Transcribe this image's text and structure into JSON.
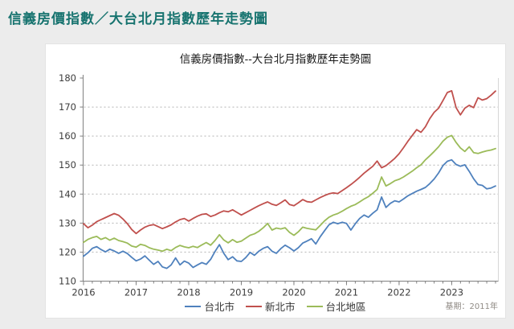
{
  "page": {
    "title": "信義房價指數／大台北月指數歷年走勢圖"
  },
  "panel": {
    "note": "基期：2011年"
  },
  "chart_data": {
    "type": "line",
    "title": "信義房價指數--大台北月指數歷年走勢圖",
    "x_unit": "month",
    "x_start": "2016-01",
    "x_end": "2023-11",
    "x_tick_labels": [
      "2016",
      "2017",
      "2018",
      "2019",
      "2020",
      "2021",
      "2022",
      "2023"
    ],
    "months_per_label": 12,
    "ylim": [
      110,
      180
    ],
    "y_ticks": [
      110,
      120,
      130,
      140,
      150,
      160,
      170,
      180
    ],
    "y_gridlines": [
      120,
      130,
      140,
      150,
      160,
      170
    ],
    "grid": "horizontal dashed",
    "legend_position": "bottom-center",
    "base_period_note": "基期：2011年",
    "axis_color": "#808080",
    "grid_color": "#b4b4b4",
    "series": [
      {
        "name": "台北市",
        "color": "#4F81BD",
        "values": [
          118.6,
          119.8,
          121.3,
          121.9,
          120.9,
          120.1,
          121.0,
          120.4,
          119.6,
          120.3,
          119.5,
          118.2,
          117.0,
          117.6,
          118.7,
          117.2,
          115.8,
          116.8,
          114.9,
          114.4,
          115.6,
          118.0,
          115.6,
          116.9,
          116.2,
          114.7,
          115.6,
          116.4,
          115.8,
          117.5,
          120.2,
          122.6,
          119.6,
          117.4,
          118.4,
          117.0,
          116.8,
          118.1,
          119.9,
          118.9,
          120.3,
          121.3,
          121.9,
          120.3,
          119.6,
          121.2,
          122.4,
          121.5,
          120.4,
          121.5,
          123.1,
          123.8,
          124.6,
          122.8,
          125.3,
          127.4,
          129.4,
          130.3,
          129.8,
          130.3,
          129.9,
          127.6,
          129.8,
          131.6,
          132.8,
          132.0,
          133.4,
          134.6,
          139.0,
          135.4,
          136.8,
          137.7,
          137.3,
          138.3,
          139.4,
          140.2,
          141.0,
          141.6,
          142.3,
          143.6,
          145.2,
          147.3,
          149.8,
          151.3,
          151.8,
          150.2,
          149.6,
          150.1,
          147.8,
          145.3,
          143.3,
          143.0,
          141.8,
          142.1,
          142.8
        ]
      },
      {
        "name": "新北市",
        "color": "#C0504D",
        "values": [
          129.8,
          128.4,
          129.3,
          130.5,
          131.2,
          131.9,
          132.6,
          133.3,
          132.7,
          131.4,
          129.8,
          127.8,
          126.4,
          127.6,
          128.6,
          129.2,
          129.5,
          128.8,
          128.1,
          128.7,
          129.4,
          130.4,
          131.2,
          131.6,
          130.7,
          131.6,
          132.4,
          133.0,
          133.2,
          132.3,
          132.8,
          133.6,
          134.2,
          133.9,
          134.6,
          133.7,
          132.8,
          133.6,
          134.4,
          135.2,
          136.0,
          136.7,
          137.3,
          136.5,
          136.1,
          137.0,
          138.0,
          136.4,
          136.0,
          137.0,
          138.1,
          137.4,
          137.2,
          138.0,
          138.8,
          139.5,
          140.1,
          140.4,
          140.2,
          141.2,
          142.2,
          143.3,
          144.5,
          145.8,
          147.2,
          148.4,
          149.6,
          151.4,
          149.1,
          149.8,
          151.0,
          152.3,
          153.9,
          156.0,
          158.2,
          160.2,
          162.2,
          161.3,
          163.2,
          166.0,
          168.2,
          169.6,
          172.2,
          175.0,
          175.6,
          169.8,
          167.3,
          169.6,
          170.6,
          169.8,
          173.2,
          172.4,
          172.9,
          174.1,
          175.5
        ]
      },
      {
        "name": "台北地區",
        "color": "#9BBB59",
        "values": [
          123.4,
          124.4,
          125.0,
          125.4,
          124.4,
          125.0,
          124.1,
          124.8,
          124.0,
          123.6,
          123.1,
          122.1,
          121.7,
          122.7,
          122.3,
          121.5,
          121.0,
          120.7,
          120.3,
          121.0,
          120.5,
          121.6,
          122.3,
          121.8,
          121.5,
          122.0,
          121.6,
          122.5,
          123.3,
          122.4,
          124.0,
          126.0,
          124.2,
          123.2,
          124.3,
          123.4,
          123.8,
          124.8,
          125.8,
          126.3,
          127.2,
          128.4,
          129.9,
          127.6,
          128.3,
          128.0,
          128.4,
          126.8,
          125.8,
          127.0,
          128.6,
          128.2,
          127.9,
          127.7,
          129.2,
          130.8,
          132.0,
          132.8,
          133.3,
          134.1,
          135.0,
          135.8,
          136.4,
          137.3,
          138.3,
          139.1,
          140.3,
          141.6,
          145.9,
          142.8,
          143.6,
          144.6,
          145.1,
          145.9,
          146.9,
          147.9,
          149.1,
          150.1,
          151.8,
          153.2,
          154.7,
          156.3,
          158.2,
          159.6,
          160.2,
          157.8,
          155.9,
          154.7,
          156.3,
          154.3,
          154.0,
          154.5,
          154.9,
          155.2,
          155.7
        ]
      }
    ]
  }
}
